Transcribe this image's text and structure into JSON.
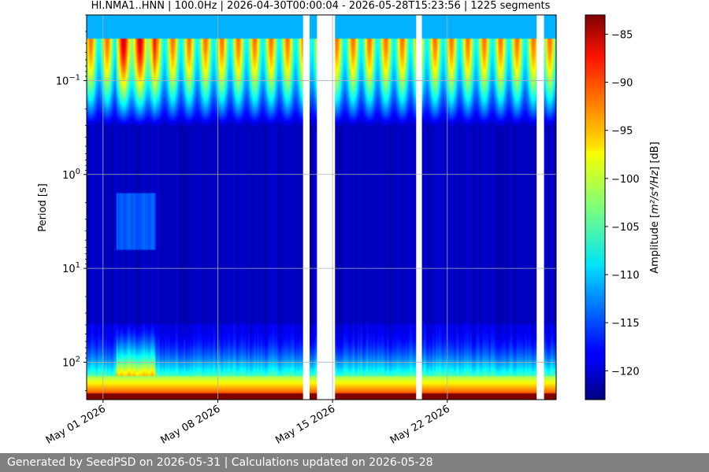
{
  "chart_data": {
    "type": "heatmap",
    "title": "HI.NMA1..HNN | 100.0Hz | 2026-04-30T00:00:04 - 2026-05-28T15:23:56 | 1225 segments",
    "xlabel": "",
    "ylabel": "Period [s]",
    "x_tick_labels": [
      "May 01 2026",
      "May 08 2026",
      "May 15 2026",
      "May 22 2026"
    ],
    "x_ticks": [
      1,
      8,
      15,
      22
    ],
    "x_range_days": [
      0,
      28.64
    ],
    "y_scale": "log",
    "y_inverted": true,
    "y_range": [
      0.02,
      250
    ],
    "y_ticks": [
      0.1,
      1,
      10,
      100
    ],
    "y_tick_labels": [
      {
        "base": "10",
        "exp": "−1"
      },
      {
        "base": "10",
        "exp": "0"
      },
      {
        "base": "10",
        "exp": "1"
      },
      {
        "base": "10",
        "exp": "2"
      }
    ],
    "grid": true,
    "colormap": "jet",
    "colorbar": {
      "label_prefix": "Amplitude [",
      "label_math": "m²/s⁴/Hz",
      "label_suffix": "] [dB]",
      "vmin": -123,
      "vmax": -83,
      "ticks": [
        -85,
        -90,
        -95,
        -100,
        -105,
        -110,
        -115,
        -120
      ],
      "tick_labels": [
        "−85",
        "−90",
        "−95",
        "−100",
        "−105",
        "−110",
        "−115",
        "−120"
      ]
    },
    "data_gaps": [
      {
        "start_day": 13.2,
        "end_day": 13.6
      },
      {
        "start_day": 14.05,
        "end_day": 15.15
      },
      {
        "start_day": 20.1,
        "end_day": 20.45
      },
      {
        "start_day": 27.45,
        "end_day": 27.9
      }
    ],
    "colors": {
      "background": "#ffffff",
      "grid": "#b0b0b0",
      "gap": "#ffffff"
    }
  },
  "footer": {
    "text": "Generated by SeedPSD on 2026-05-31 | Calculations updated on 2026-05-28",
    "background": "#808080"
  }
}
